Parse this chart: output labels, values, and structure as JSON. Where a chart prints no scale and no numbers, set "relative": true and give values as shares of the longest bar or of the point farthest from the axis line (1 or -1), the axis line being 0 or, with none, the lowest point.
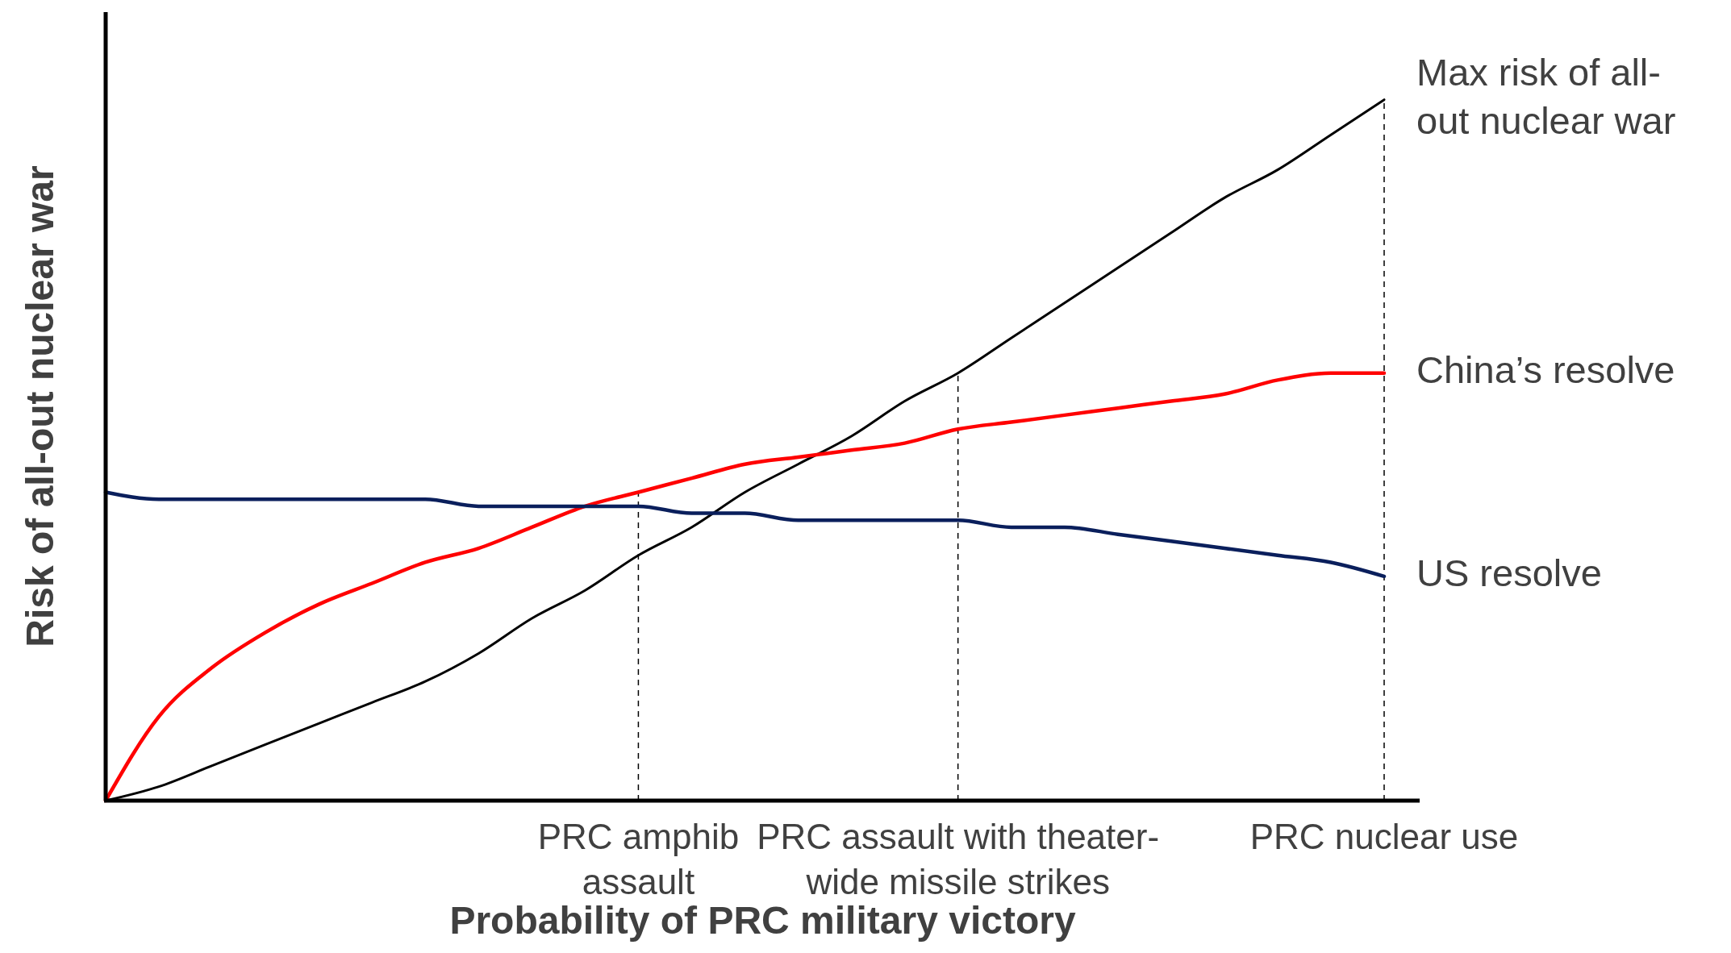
{
  "chart_data": {
    "type": "line",
    "relative": true,
    "xlabel": "Probability of PRC military victory",
    "ylabel": "Risk of all-out nuclear war",
    "categories": [
      null,
      null,
      null,
      null,
      null,
      null,
      null,
      null,
      null,
      null,
      "PRC amphib\nassault",
      null,
      null,
      null,
      null,
      null,
      "PRC assault with theater-\nwide missile strikes",
      null,
      null,
      null,
      null,
      null,
      null,
      null,
      "PRC nuclear use"
    ],
    "series": [
      {
        "name": "Max risk of all-\nout nuclear war",
        "color": "#000000",
        "values": [
          0,
          0.02,
          0.05,
          0.08,
          0.11,
          0.14,
          0.17,
          0.21,
          0.26,
          0.3,
          0.35,
          0.39,
          0.44,
          0.48,
          0.52,
          0.57,
          0.61,
          0.66,
          0.71,
          0.76,
          0.81,
          0.86,
          0.9,
          0.95,
          1
        ]
      },
      {
        "name": "China’s resolve",
        "color": "#ff0000",
        "values": [
          0,
          0.12,
          0.19,
          0.24,
          0.28,
          0.31,
          0.34,
          0.36,
          0.39,
          0.42,
          0.44,
          0.46,
          0.48,
          0.49,
          0.5,
          0.51,
          0.53,
          0.54,
          0.55,
          0.56,
          0.57,
          0.58,
          0.6,
          0.61,
          0.61
        ]
      },
      {
        "name": "US resolve",
        "color": "#0a1f5c",
        "values": [
          0.44,
          0.43,
          0.43,
          0.43,
          0.43,
          0.43,
          0.43,
          0.42,
          0.42,
          0.42,
          0.42,
          0.41,
          0.41,
          0.4,
          0.4,
          0.4,
          0.4,
          0.39,
          0.39,
          0.38,
          0.37,
          0.36,
          0.35,
          0.34,
          0.32
        ]
      }
    ],
    "ref_lines": [
      {
        "axis": "x",
        "value": "PRC amphib\nassault",
        "line_style": "dashed"
      },
      {
        "axis": "x",
        "value": "PRC assault with theater-\nwide missile strikes",
        "line_style": "dashed"
      },
      {
        "axis": "x",
        "value": "PRC nuclear use",
        "line_style": "dashed"
      }
    ],
    "marker": "none",
    "line_style": "solid"
  }
}
